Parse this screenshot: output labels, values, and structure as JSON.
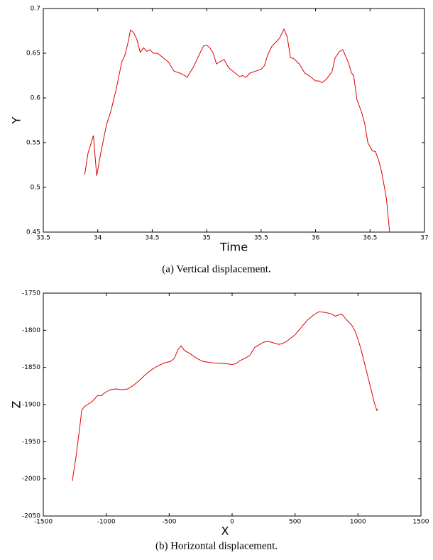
{
  "chart_data": [
    {
      "type": "line",
      "caption": "(a) Vertical displacement.",
      "x_label": "Time",
      "y_label": "Y",
      "color": "#e00000",
      "xlim": [
        33.5,
        37
      ],
      "xticks": [
        33.5,
        34,
        34.5,
        35,
        35.5,
        36,
        36.5,
        37
      ],
      "ylim": [
        0.45,
        0.7
      ],
      "yticks": [
        0.45,
        0.5,
        0.55,
        0.6,
        0.65,
        0.7
      ],
      "x": [
        33.88,
        33.91,
        33.96,
        33.99,
        34.03,
        34.08,
        34.12,
        34.17,
        34.22,
        34.25,
        34.28,
        34.3,
        34.33,
        34.36,
        34.39,
        34.42,
        34.45,
        34.48,
        34.51,
        34.55,
        34.65,
        34.7,
        34.75,
        34.8,
        34.82,
        34.88,
        34.93,
        34.97,
        35.0,
        35.03,
        35.06,
        35.09,
        35.13,
        35.16,
        35.2,
        35.25,
        35.3,
        35.33,
        35.36,
        35.4,
        35.45,
        35.5,
        35.53,
        35.56,
        35.6,
        35.64,
        35.67,
        35.71,
        35.74,
        35.77,
        35.8,
        35.85,
        35.9,
        35.95,
        36.0,
        36.03,
        36.06,
        36.1,
        36.15,
        36.18,
        36.22,
        36.25,
        36.3,
        36.33,
        36.35,
        36.38,
        36.42,
        36.45,
        36.48,
        36.52,
        36.55,
        36.58,
        36.61,
        36.65,
        36.68
      ],
      "values": [
        0.514,
        0.538,
        0.558,
        0.513,
        0.54,
        0.57,
        0.585,
        0.61,
        0.64,
        0.648,
        0.663,
        0.676,
        0.673,
        0.665,
        0.651,
        0.656,
        0.652,
        0.654,
        0.65,
        0.65,
        0.64,
        0.63,
        0.628,
        0.625,
        0.623,
        0.635,
        0.648,
        0.658,
        0.659,
        0.656,
        0.65,
        0.638,
        0.641,
        0.643,
        0.634,
        0.629,
        0.624,
        0.625,
        0.623,
        0.628,
        0.63,
        0.632,
        0.636,
        0.648,
        0.658,
        0.663,
        0.667,
        0.677,
        0.668,
        0.645,
        0.644,
        0.638,
        0.628,
        0.624,
        0.619,
        0.619,
        0.617,
        0.621,
        0.629,
        0.645,
        0.652,
        0.654,
        0.64,
        0.628,
        0.625,
        0.598,
        0.585,
        0.572,
        0.55,
        0.541,
        0.54,
        0.53,
        0.515,
        0.488,
        0.45
      ]
    },
    {
      "type": "line",
      "caption": "(b) Horizontal displacement.",
      "x_label": "X",
      "y_label": "Z",
      "color": "#e00000",
      "xlim": [
        -1500,
        1500
      ],
      "xticks": [
        -1500,
        -1000,
        -500,
        0,
        500,
        1000,
        1500
      ],
      "ylim": [
        -2050,
        -1750
      ],
      "yticks": [
        -2050,
        -2000,
        -1950,
        -1900,
        -1850,
        -1800,
        -1750
      ],
      "x": [
        -1270,
        -1240,
        -1210,
        -1195,
        -1175,
        -1150,
        -1120,
        -1090,
        -1070,
        -1040,
        -1010,
        -970,
        -920,
        -870,
        -830,
        -790,
        -740,
        -690,
        -640,
        -590,
        -540,
        -490,
        -460,
        -430,
        -405,
        -380,
        -330,
        -280,
        -230,
        -150,
        -50,
        0,
        30,
        60,
        100,
        140,
        180,
        210,
        250,
        290,
        330,
        370,
        400,
        440,
        500,
        550,
        600,
        650,
        690,
        740,
        790,
        820,
        870,
        910,
        950,
        980,
        1020,
        1060,
        1100,
        1130,
        1150,
        1160
      ],
      "values": [
        -2003,
        -1970,
        -1930,
        -1908,
        -1903,
        -1900,
        -1897,
        -1892,
        -1888,
        -1888,
        -1884,
        -1880,
        -1879,
        -1880,
        -1879,
        -1875,
        -1868,
        -1860,
        -1853,
        -1848,
        -1844,
        -1842,
        -1838,
        -1826,
        -1821,
        -1827,
        -1832,
        -1838,
        -1842,
        -1844,
        -1845,
        -1846,
        -1845,
        -1841,
        -1838,
        -1834,
        -1823,
        -1820,
        -1816,
        -1815,
        -1817,
        -1819,
        -1818,
        -1814,
        -1806,
        -1796,
        -1786,
        -1779,
        -1775,
        -1776,
        -1778,
        -1781,
        -1778,
        -1786,
        -1793,
        -1802,
        -1823,
        -1850,
        -1877,
        -1898,
        -1908,
        -1906
      ]
    }
  ]
}
